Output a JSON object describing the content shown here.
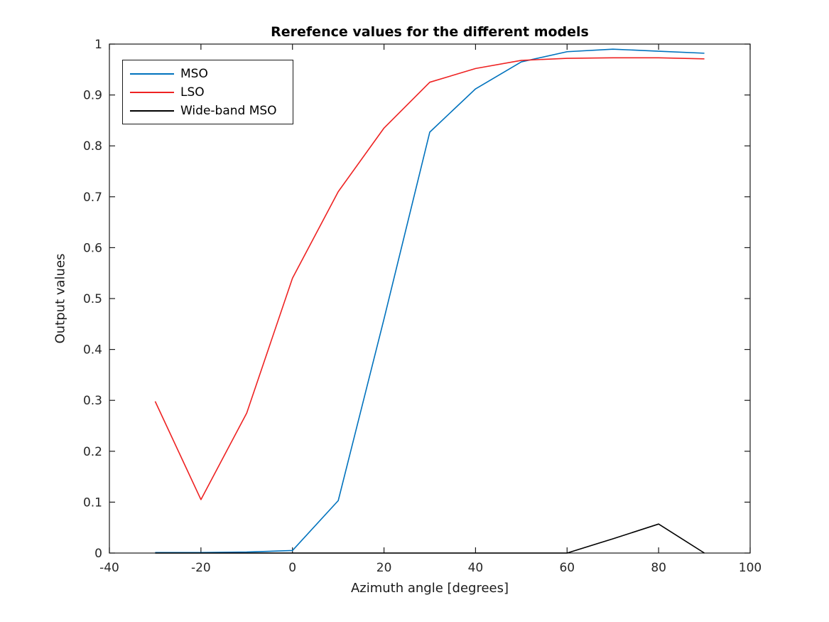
{
  "title": "Rerefence values for the different models",
  "axes": {
    "xlabel": "Azimuth angle [degrees]",
    "ylabel": "Output values",
    "xlim": [
      -40,
      100
    ],
    "ylim": [
      0,
      1
    ],
    "x_ticks": [
      -40,
      -20,
      0,
      20,
      40,
      60,
      80,
      100
    ],
    "x_tick_labels": [
      "-40",
      "-20",
      "0",
      "20",
      "40",
      "60",
      "80",
      "100"
    ],
    "y_ticks": [
      0,
      0.1,
      0.2,
      0.3,
      0.4,
      0.5,
      0.6,
      0.7,
      0.8,
      0.9,
      1
    ],
    "y_tick_labels": [
      "0",
      "0.1",
      "0.2",
      "0.3",
      "0.4",
      "0.5",
      "0.6",
      "0.7",
      "0.8",
      "0.9",
      "1"
    ]
  },
  "legend": {
    "position": "top-left",
    "entries": [
      "MSO",
      "LSO",
      "Wide-band MSO"
    ]
  },
  "colors": {
    "mso": "#0072bd",
    "lso": "#ee2222",
    "wideband_mso": "#000000",
    "axis": "#1a1a1a",
    "tick_text": "#262626"
  },
  "chart_data": {
    "type": "line",
    "title": "Rerefence values for the different models",
    "xlabel": "Azimuth angle [degrees]",
    "ylabel": "Output values",
    "xlim": [
      -40,
      100
    ],
    "ylim": [
      0,
      1
    ],
    "grid": false,
    "legend_position": "top-left",
    "x": [
      -30,
      -20,
      -10,
      0,
      10,
      20,
      30,
      40,
      50,
      60,
      70,
      80,
      90
    ],
    "series": [
      {
        "name": "MSO",
        "color": "#0072bd",
        "values": [
          0.001,
          0.001,
          0.002,
          0.005,
          0.103,
          0.46,
          0.827,
          0.912,
          0.965,
          0.985,
          0.99,
          0.986,
          0.982
        ]
      },
      {
        "name": "LSO",
        "color": "#ee2222",
        "values": [
          0.298,
          0.105,
          0.275,
          0.54,
          0.71,
          0.835,
          0.925,
          0.952,
          0.968,
          0.972,
          0.973,
          0.973,
          0.971
        ]
      },
      {
        "name": "Wide-band MSO",
        "color": "#000000",
        "values": [
          0,
          0,
          0,
          0,
          0,
          0,
          0,
          0,
          0,
          0,
          0.028,
          0.057,
          0
        ]
      }
    ]
  }
}
